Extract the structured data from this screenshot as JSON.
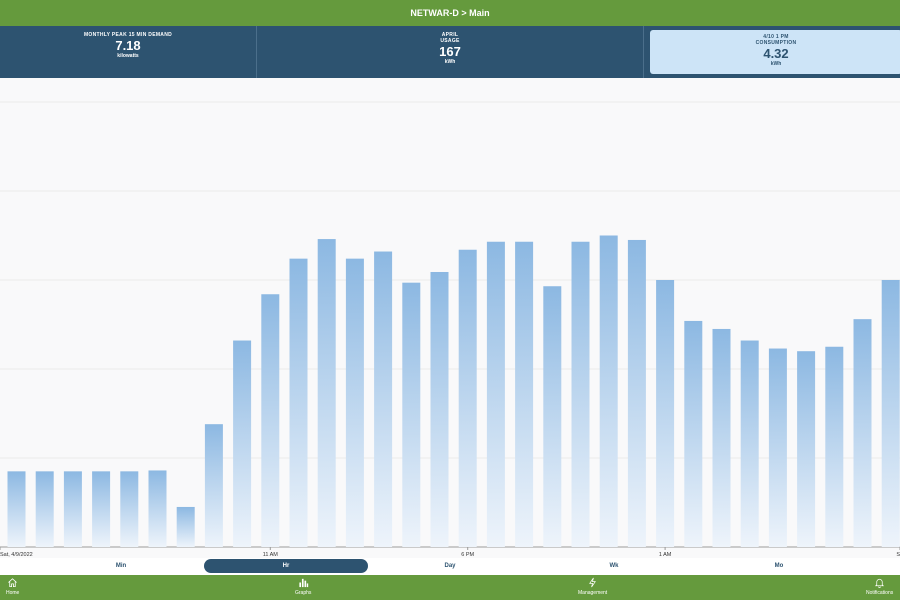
{
  "header": {
    "title": "NETWAR-D > Main"
  },
  "kpis": {
    "peak": {
      "title": "MONTHLY PEAK 15 MIN DEMAND",
      "value": "7.18",
      "unit": "kilowatts"
    },
    "usage": {
      "title_line1": "APRIL",
      "title_line2": "USAGE",
      "value": "167",
      "unit": "kWh"
    },
    "consumption": {
      "title_line1": "4/10 1 PM",
      "title_line2": "CONSUMPTION",
      "value": "4.32",
      "unit": "kWh"
    }
  },
  "chart_data": {
    "type": "bar",
    "x_labels": [
      "Sat, 4/9/2022",
      "11 AM",
      "6 PM",
      "1 AM",
      "S"
    ],
    "values": [
      0.85,
      0.85,
      0.85,
      0.85,
      0.85,
      0.86,
      0.45,
      1.38,
      2.32,
      2.84,
      3.24,
      3.46,
      3.24,
      3.32,
      2.97,
      3.09,
      3.34,
      3.43,
      3.43,
      2.93,
      3.43,
      3.5,
      3.45,
      3.0,
      2.54,
      2.45,
      2.32,
      2.23,
      2.2,
      2.25,
      2.56,
      3.0
    ],
    "ylim": [
      0,
      5
    ],
    "grid": true,
    "bar_color": "#8cb8e2"
  },
  "range_tabs": {
    "selected": "Hr",
    "items": [
      "Min",
      "Hr",
      "Day",
      "Wk",
      "Mo"
    ]
  },
  "nav": {
    "home": "Home",
    "graphs": "Graphs",
    "management": "Management",
    "notifications": "Notifications"
  },
  "colors": {
    "green": "#659a3d",
    "navy": "#2d5370",
    "highlight": "#cde4f7"
  }
}
